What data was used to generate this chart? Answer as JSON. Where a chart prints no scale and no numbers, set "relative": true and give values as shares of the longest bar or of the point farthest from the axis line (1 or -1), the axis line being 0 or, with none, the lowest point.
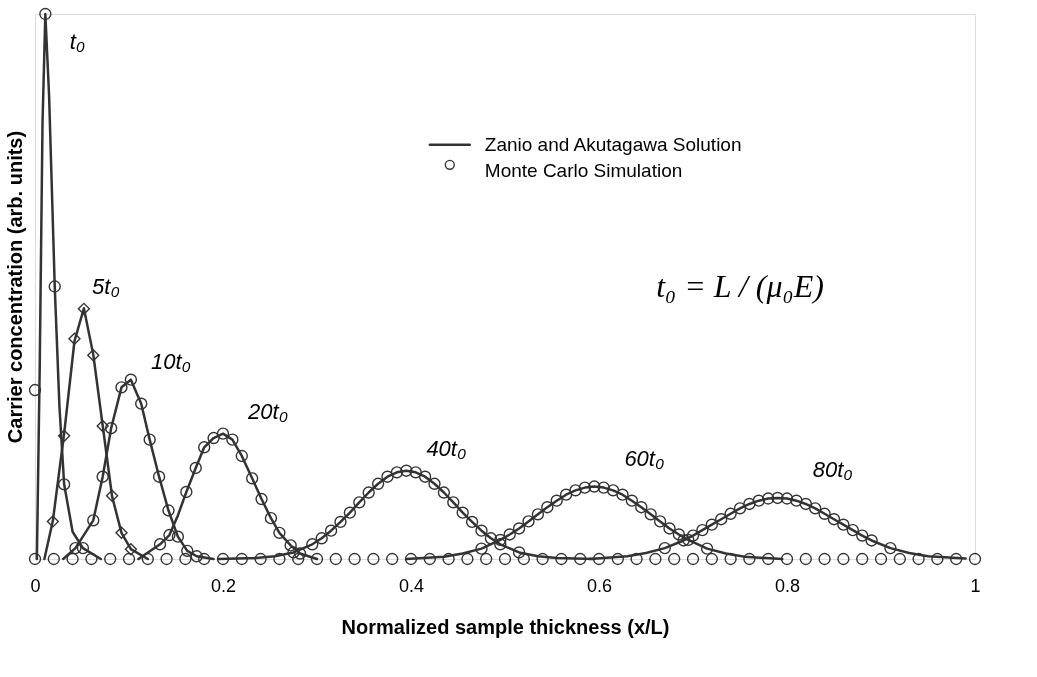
{
  "chart_data": {
    "type": "line",
    "relative": true,
    "xlabel": "Normalized sample thickness (x/L)",
    "ylabel": "Carrier concentration (arb. units)",
    "xlim": [
      0,
      1
    ],
    "xticks": [
      0,
      0.2,
      0.4,
      0.6,
      0.8,
      1
    ],
    "grid": false,
    "legend": "top right",
    "series": [
      {
        "name": "Zanio and Akutagawa Solution",
        "type": "line",
        "marker": "none",
        "line_style": "solid",
        "color": "#333333",
        "x": [
          0.002,
          0.005,
          0.008,
          0.011,
          0.015,
          0.021,
          0.026,
          0.031,
          0.04,
          0.051,
          0.07
        ],
        "values": [
          0,
          0.35,
          0.8,
          1.0,
          0.85,
          0.5,
          0.28,
          0.137,
          0.05,
          0.02,
          0
        ]
      },
      {
        "type": "line",
        "marker": "none",
        "line_style": "solid",
        "color": "#333333",
        "x": [
          0.01,
          0.019,
          0.031,
          0.042,
          0.052,
          0.062,
          0.072,
          0.082,
          0.092,
          0.102,
          0.12
        ],
        "values": [
          0,
          0.07,
          0.23,
          0.4,
          0.46,
          0.375,
          0.245,
          0.115,
          0.048,
          0.018,
          0
        ]
      },
      {
        "type": "line",
        "marker": "none",
        "line_style": "solid",
        "color": "#333333",
        "x": [
          0.03,
          0.043,
          0.062,
          0.072,
          0.081,
          0.092,
          0.102,
          0.113,
          0.122,
          0.132,
          0.142,
          0.152,
          0.162,
          0.172,
          0.19
        ],
        "values": [
          0,
          0.02,
          0.071,
          0.151,
          0.24,
          0.315,
          0.329,
          0.285,
          0.219,
          0.151,
          0.089,
          0.041,
          0.015,
          0.005,
          0
        ]
      },
      {
        "type": "line",
        "marker": "none",
        "line_style": "solid",
        "color": "#333333",
        "x": [
          0.11,
          0.133,
          0.143,
          0.152,
          0.161,
          0.171,
          0.18,
          0.19,
          0.2,
          0.21,
          0.22,
          0.231,
          0.241,
          0.251,
          0.26,
          0.272,
          0.282,
          0.3
        ],
        "values": [
          0,
          0.027,
          0.044,
          0.08,
          0.123,
          0.167,
          0.205,
          0.222,
          0.23,
          0.219,
          0.189,
          0.148,
          0.11,
          0.075,
          0.048,
          0.025,
          0.01,
          0
        ]
      },
      {
        "type": "line",
        "marker": "none",
        "line_style": "solid",
        "color": "#333333",
        "x": [
          0.195,
          0.235,
          0.255,
          0.275,
          0.295,
          0.305,
          0.315,
          0.325,
          0.335,
          0.345,
          0.355,
          0.365,
          0.375,
          0.385,
          0.395,
          0.405,
          0.415,
          0.425,
          0.435,
          0.445,
          0.455,
          0.465,
          0.475,
          0.485,
          0.495,
          0.515,
          0.535,
          0.555,
          0.595
        ],
        "values": [
          0,
          0.002,
          0.005,
          0.012,
          0.027,
          0.038,
          0.052,
          0.068,
          0.085,
          0.104,
          0.122,
          0.138,
          0.151,
          0.159,
          0.162,
          0.159,
          0.151,
          0.138,
          0.122,
          0.104,
          0.085,
          0.068,
          0.052,
          0.038,
          0.027,
          0.012,
          0.005,
          0.002,
          0
        ]
      },
      {
        "type": "line",
        "marker": "none",
        "line_style": "solid",
        "color": "#333333",
        "x": [
          0.395,
          0.435,
          0.455,
          0.475,
          0.495,
          0.505,
          0.515,
          0.525,
          0.535,
          0.545,
          0.555,
          0.565,
          0.575,
          0.585,
          0.595,
          0.605,
          0.615,
          0.625,
          0.635,
          0.645,
          0.655,
          0.665,
          0.675,
          0.685,
          0.695,
          0.715,
          0.735,
          0.755,
          0.795
        ],
        "values": [
          0,
          0.004,
          0.01,
          0.019,
          0.035,
          0.045,
          0.056,
          0.069,
          0.082,
          0.095,
          0.107,
          0.118,
          0.126,
          0.131,
          0.133,
          0.131,
          0.126,
          0.118,
          0.107,
          0.095,
          0.082,
          0.069,
          0.056,
          0.045,
          0.035,
          0.019,
          0.01,
          0.004,
          0
        ]
      },
      {
        "type": "line",
        "marker": "none",
        "line_style": "solid",
        "color": "#333333",
        "x": [
          0.59,
          0.63,
          0.65,
          0.67,
          0.69,
          0.7,
          0.71,
          0.72,
          0.73,
          0.74,
          0.75,
          0.76,
          0.77,
          0.78,
          0.79,
          0.8,
          0.81,
          0.82,
          0.83,
          0.84,
          0.85,
          0.86,
          0.87,
          0.88,
          0.89,
          0.91,
          0.93,
          0.95,
          0.99
        ],
        "values": [
          0,
          0.005,
          0.011,
          0.02,
          0.034,
          0.043,
          0.053,
          0.063,
          0.073,
          0.083,
          0.093,
          0.101,
          0.107,
          0.111,
          0.112,
          0.111,
          0.107,
          0.101,
          0.093,
          0.083,
          0.073,
          0.063,
          0.053,
          0.043,
          0.034,
          0.02,
          0.011,
          0.005,
          0.001
        ]
      },
      {
        "name": "Monte Carlo Simulation",
        "type": "scatter",
        "marker": "circle",
        "color": "#333333",
        "x": [
          0,
          0.011,
          0.021,
          0.031,
          0.051
        ],
        "values": [
          0.31,
          1.0,
          0.5,
          0.137,
          0.02
        ]
      },
      {
        "type": "scatter",
        "marker": "diamond",
        "color": "#333333",
        "x": [
          0.019,
          0.031,
          0.042,
          0.052,
          0.062,
          0.072,
          0.082,
          0.092,
          0.102
        ],
        "values": [
          0.069,
          0.226,
          0.404,
          0.459,
          0.374,
          0.244,
          0.116,
          0.048,
          0.018
        ]
      },
      {
        "type": "scatter",
        "marker": "circle",
        "color": "#333333",
        "x": [
          0.043,
          0.062,
          0.072,
          0.081,
          0.092,
          0.102,
          0.113,
          0.122,
          0.132,
          0.142,
          0.152,
          0.162,
          0.172
        ],
        "values": [
          0.02,
          0.071,
          0.151,
          0.24,
          0.315,
          0.329,
          0.285,
          0.219,
          0.151,
          0.089,
          0.041,
          0.015,
          0.005
        ]
      },
      {
        "type": "scatter",
        "marker": "circle",
        "color": "#333333",
        "x": [
          0.133,
          0.143,
          0.161,
          0.171,
          0.18,
          0.19,
          0.2,
          0.21,
          0.22,
          0.231,
          0.241,
          0.251,
          0.26,
          0.272,
          0.282
        ],
        "values": [
          0.027,
          0.044,
          0.123,
          0.167,
          0.205,
          0.222,
          0.23,
          0.219,
          0.189,
          0.148,
          0.11,
          0.075,
          0.048,
          0.025,
          0.01
        ]
      },
      {
        "type": "scatter",
        "marker": "circle",
        "color": "#333333",
        "x": [
          0.275,
          0.295,
          0.305,
          0.315,
          0.325,
          0.335,
          0.345,
          0.355,
          0.365,
          0.375,
          0.385,
          0.395,
          0.405,
          0.415,
          0.425,
          0.435,
          0.445,
          0.455,
          0.465,
          0.475,
          0.485,
          0.495,
          0.515
        ],
        "values": [
          0.012,
          0.027,
          0.038,
          0.052,
          0.068,
          0.085,
          0.104,
          0.122,
          0.138,
          0.151,
          0.159,
          0.162,
          0.159,
          0.151,
          0.138,
          0.122,
          0.104,
          0.085,
          0.068,
          0.052,
          0.038,
          0.027,
          0.012
        ]
      },
      {
        "type": "scatter",
        "marker": "circle",
        "color": "#333333",
        "x": [
          0.475,
          0.495,
          0.505,
          0.515,
          0.525,
          0.535,
          0.545,
          0.555,
          0.565,
          0.575,
          0.585,
          0.595,
          0.605,
          0.615,
          0.625,
          0.635,
          0.645,
          0.655,
          0.665,
          0.675,
          0.685,
          0.695,
          0.715
        ],
        "values": [
          0.019,
          0.035,
          0.045,
          0.056,
          0.069,
          0.082,
          0.095,
          0.107,
          0.118,
          0.126,
          0.131,
          0.133,
          0.131,
          0.126,
          0.118,
          0.107,
          0.095,
          0.082,
          0.069,
          0.056,
          0.045,
          0.035,
          0.019
        ]
      },
      {
        "type": "scatter",
        "marker": "circle",
        "color": "#333333",
        "x": [
          0.67,
          0.69,
          0.7,
          0.71,
          0.72,
          0.73,
          0.74,
          0.75,
          0.76,
          0.77,
          0.78,
          0.79,
          0.8,
          0.81,
          0.82,
          0.83,
          0.84,
          0.85,
          0.86,
          0.87,
          0.88,
          0.89,
          0.91
        ],
        "values": [
          0.02,
          0.034,
          0.043,
          0.053,
          0.063,
          0.073,
          0.083,
          0.093,
          0.101,
          0.107,
          0.111,
          0.112,
          0.111,
          0.107,
          0.101,
          0.093,
          0.083,
          0.073,
          0.063,
          0.053,
          0.043,
          0.034,
          0.02
        ]
      },
      {
        "type": "scatter",
        "marker": "circle",
        "color": "#333333",
        "x": [
          0,
          0.02,
          0.04,
          0.06,
          0.08,
          0.1,
          0.12,
          0.14,
          0.16,
          0.18,
          0.2,
          0.22,
          0.24,
          0.26,
          0.28,
          0.3,
          0.32,
          0.34,
          0.36,
          0.38,
          0.4,
          0.42,
          0.44,
          0.46,
          0.48,
          0.5,
          0.52,
          0.54,
          0.56,
          0.58,
          0.6,
          0.62,
          0.64,
          0.66,
          0.68,
          0.7,
          0.72,
          0.74,
          0.76,
          0.78,
          0.8,
          0.82,
          0.84,
          0.86,
          0.88,
          0.9,
          0.92,
          0.94,
          0.96,
          0.98,
          1
        ],
        "values": [
          0,
          0,
          0,
          0,
          0,
          0,
          0,
          0,
          0,
          0,
          0,
          0,
          0,
          0,
          0,
          0,
          0,
          0,
          0,
          0,
          0,
          0,
          0,
          0,
          0,
          0,
          0,
          0,
          0,
          0,
          0,
          0,
          0,
          0,
          0,
          0,
          0,
          0,
          0,
          0,
          0,
          0,
          0,
          0,
          0,
          0,
          0,
          0,
          0,
          0,
          0
        ]
      }
    ],
    "annotations": [
      {
        "text": "t₀",
        "x": 0.011,
        "y": 1.0
      },
      {
        "text": "5t₀",
        "x": 0.052,
        "y": 0.459
      },
      {
        "text": "10t₀",
        "x": 0.102,
        "y": 0.329
      },
      {
        "text": "20t₀",
        "x": 0.2,
        "y": 0.23
      },
      {
        "text": "40t₀",
        "x": 0.395,
        "y": 0.162
      },
      {
        "text": "60t₀",
        "x": 0.595,
        "y": 0.133
      },
      {
        "text": "80t₀",
        "x": 0.79,
        "y": 0.112
      },
      "t₀ = L / (μ₀E)"
    ]
  }
}
